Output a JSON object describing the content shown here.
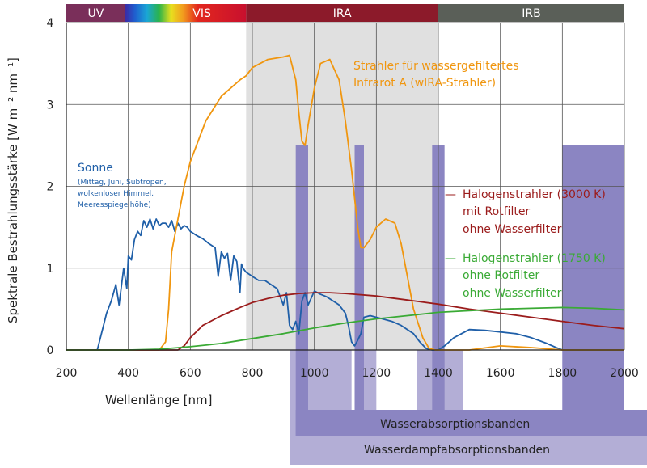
{
  "chart_data": {
    "type": "line",
    "xlabel": "Wellenlänge [nm]",
    "ylabel": "Spektrale Bestrahlungsstärke [W m⁻² nm⁻¹]",
    "xlim": [
      200,
      2000
    ],
    "ylim": [
      0,
      4
    ],
    "x_ticks": [
      200,
      400,
      600,
      800,
      1000,
      1200,
      1400,
      1600,
      1800,
      2000
    ],
    "y_ticks": [
      0,
      1,
      2,
      3,
      4
    ],
    "grid": true,
    "bands": [
      {
        "label": "UV",
        "start": 200,
        "end": 390,
        "color": "#7a2f5a"
      },
      {
        "label": "VIS",
        "start": 390,
        "end": 780,
        "color": "#c8102e"
      },
      {
        "label": "IRA",
        "start": 780,
        "end": 1400,
        "color": "#8c1a2a"
      },
      {
        "label": "IRB",
        "start": 1400,
        "end": 2000,
        "color": "#5a5f58"
      }
    ],
    "shaded_region": {
      "start": 780,
      "end": 1400,
      "color": "#e0e0e0"
    },
    "water_absorption_label": "Wasserabsorptionsbanden",
    "water_absorption_bands": [
      {
        "start": 940,
        "end": 980
      },
      {
        "start": 1130,
        "end": 1160
      },
      {
        "start": 1380,
        "end": 1420
      },
      {
        "start": 1800,
        "end": 2000
      }
    ],
    "water_vapor_label": "Wasserdampfabsorptionsbanden",
    "water_vapor_bands": [
      {
        "start": 920,
        "end": 1120
      },
      {
        "start": 1130,
        "end": 1200
      },
      {
        "start": 1330,
        "end": 1480
      },
      {
        "start": 1800,
        "end": 2000
      }
    ],
    "series": [
      {
        "name": "Sonne",
        "color": "#1f5fa8",
        "x": [
          300,
          320,
          330,
          345,
          360,
          370,
          385,
          395,
          400,
          410,
          420,
          430,
          440,
          450,
          460,
          470,
          480,
          490,
          500,
          510,
          520,
          530,
          540,
          550,
          560,
          570,
          580,
          590,
          600,
          620,
          640,
          660,
          680,
          690,
          700,
          710,
          720,
          730,
          740,
          750,
          760,
          765,
          770,
          780,
          800,
          820,
          840,
          860,
          880,
          900,
          910,
          920,
          930,
          940,
          950,
          960,
          970,
          980,
          1000,
          1020,
          1040,
          1060,
          1080,
          1100,
          1110,
          1120,
          1130,
          1140,
          1150,
          1160,
          1180,
          1200,
          1220,
          1250,
          1280,
          1300,
          1320,
          1340,
          1360,
          1380,
          1400,
          1420,
          1450,
          1500,
          1550,
          1600,
          1650,
          1700,
          1750,
          1780,
          1800,
          1850,
          1900,
          2000
        ],
        "y": [
          0.0,
          0.3,
          0.45,
          0.6,
          0.8,
          0.55,
          1.0,
          0.75,
          1.15,
          1.1,
          1.35,
          1.45,
          1.4,
          1.58,
          1.5,
          1.6,
          1.48,
          1.6,
          1.52,
          1.55,
          1.55,
          1.5,
          1.58,
          1.45,
          1.55,
          1.48,
          1.52,
          1.5,
          1.45,
          1.4,
          1.36,
          1.3,
          1.25,
          0.9,
          1.2,
          1.12,
          1.18,
          0.85,
          1.15,
          1.08,
          0.7,
          1.05,
          1.0,
          0.95,
          0.9,
          0.85,
          0.85,
          0.8,
          0.75,
          0.55,
          0.7,
          0.3,
          0.25,
          0.35,
          0.2,
          0.6,
          0.7,
          0.55,
          0.72,
          0.68,
          0.65,
          0.6,
          0.55,
          0.45,
          0.3,
          0.1,
          0.05,
          0.12,
          0.2,
          0.4,
          0.42,
          0.4,
          0.38,
          0.35,
          0.3,
          0.25,
          0.2,
          0.1,
          0.02,
          0.0,
          0.0,
          0.05,
          0.15,
          0.25,
          0.24,
          0.22,
          0.2,
          0.15,
          0.08,
          0.03,
          0.0,
          0.0,
          0.0,
          0.0
        ]
      },
      {
        "name": "Strahler für wassergefiltertes Infrarot A (wIRA-Strahler)",
        "color": "#f0960f",
        "x": [
          200,
          500,
          520,
          530,
          540,
          560,
          580,
          600,
          650,
          700,
          760,
          780,
          800,
          850,
          900,
          920,
          940,
          950,
          960,
          970,
          980,
          1000,
          1020,
          1050,
          1080,
          1100,
          1120,
          1140,
          1150,
          1160,
          1170,
          1180,
          1200,
          1230,
          1260,
          1280,
          1300,
          1320,
          1350,
          1370,
          1390,
          1400,
          1500,
          1600,
          1700,
          1800,
          2000
        ],
        "y": [
          0.0,
          0.0,
          0.1,
          0.5,
          1.2,
          1.6,
          2.0,
          2.3,
          2.8,
          3.1,
          3.3,
          3.35,
          3.45,
          3.55,
          3.58,
          3.6,
          3.3,
          2.9,
          2.55,
          2.5,
          2.75,
          3.2,
          3.5,
          3.55,
          3.3,
          2.8,
          2.2,
          1.5,
          1.25,
          1.25,
          1.3,
          1.35,
          1.5,
          1.6,
          1.55,
          1.3,
          0.9,
          0.5,
          0.15,
          0.02,
          0.0,
          0.0,
          0.0,
          0.05,
          0.03,
          0.0,
          0.0
        ]
      },
      {
        "name": "Halogenstrahler (3000 K) mit Rotfilter ohne Wasserfilter",
        "color": "#9b1c1c",
        "x": [
          200,
          560,
          580,
          600,
          640,
          700,
          760,
          800,
          850,
          900,
          950,
          1000,
          1050,
          1100,
          1200,
          1300,
          1400,
          1500,
          1600,
          1700,
          1800,
          1900,
          2000
        ],
        "y": [
          0.0,
          0.0,
          0.05,
          0.15,
          0.3,
          0.42,
          0.52,
          0.58,
          0.63,
          0.67,
          0.69,
          0.7,
          0.7,
          0.69,
          0.66,
          0.61,
          0.56,
          0.5,
          0.45,
          0.4,
          0.35,
          0.3,
          0.26
        ]
      },
      {
        "name": "Halogenstrahler (1750 K) ohne Rotfilter ohne Wasserfilter",
        "color": "#3aaa35",
        "x": [
          200,
          400,
          500,
          600,
          700,
          800,
          900,
          1000,
          1100,
          1200,
          1300,
          1400,
          1500,
          1600,
          1700,
          1800,
          1900,
          2000
        ],
        "y": [
          0.0,
          0.0,
          0.01,
          0.04,
          0.08,
          0.14,
          0.2,
          0.27,
          0.33,
          0.38,
          0.42,
          0.46,
          0.48,
          0.5,
          0.51,
          0.52,
          0.51,
          0.49
        ]
      }
    ],
    "annotations": {
      "sonne_title": "Sonne",
      "sonne_sub1": "(Mittag, Juni, Subtropen,",
      "sonne_sub2": "wolkenloser Himmel,",
      "sonne_sub3": "Meeresspiegelhöhe)",
      "wira_line1": "Strahler für wassergefiltertes",
      "wira_line2": "Infrarot A (wIRA-Strahler)",
      "halo3000_line1": "Halogenstrahler (3000 K)",
      "halo3000_line2": "mit Rotfilter",
      "halo3000_line3": "ohne Wasserfilter",
      "halo1750_line1": "Halogenstrahler (1750 K)",
      "halo1750_line2": "ohne Rotfilter",
      "halo1750_line3": "ohne Wasserfilter",
      "legend_dash": "—"
    }
  }
}
